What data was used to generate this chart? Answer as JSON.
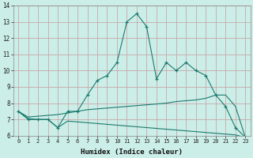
{
  "xlabel": "Humidex (Indice chaleur)",
  "x": [
    0,
    1,
    2,
    3,
    4,
    5,
    6,
    7,
    8,
    9,
    10,
    11,
    12,
    13,
    14,
    15,
    16,
    17,
    18,
    19,
    20,
    21,
    22,
    23
  ],
  "line1": [
    7.5,
    7.0,
    7.0,
    7.0,
    6.5,
    7.5,
    7.5,
    8.5,
    9.4,
    9.7,
    10.5,
    13.0,
    13.5,
    12.7,
    9.5,
    10.5,
    10.0,
    10.5,
    10.0,
    9.7,
    8.5,
    7.8,
    6.5,
    5.9
  ],
  "line2": [
    7.5,
    7.15,
    7.2,
    7.25,
    7.3,
    7.4,
    7.5,
    7.6,
    7.65,
    7.7,
    7.75,
    7.8,
    7.85,
    7.9,
    7.95,
    8.0,
    8.1,
    8.15,
    8.2,
    8.3,
    8.5,
    8.5,
    7.8,
    5.9
  ],
  "line3": [
    7.5,
    7.05,
    7.0,
    7.0,
    6.5,
    6.9,
    6.85,
    6.8,
    6.75,
    6.7,
    6.65,
    6.6,
    6.55,
    6.5,
    6.45,
    6.4,
    6.35,
    6.3,
    6.25,
    6.2,
    6.15,
    6.1,
    6.05,
    5.9
  ],
  "line_color": "#1a7a6e",
  "bg_color": "#cceee8",
  "grid_color": "#c8a8a8",
  "ylim": [
    6,
    14
  ],
  "yticks": [
    6,
    7,
    8,
    9,
    10,
    11,
    12,
    13,
    14
  ],
  "xlim": [
    -0.5,
    23.5
  ]
}
